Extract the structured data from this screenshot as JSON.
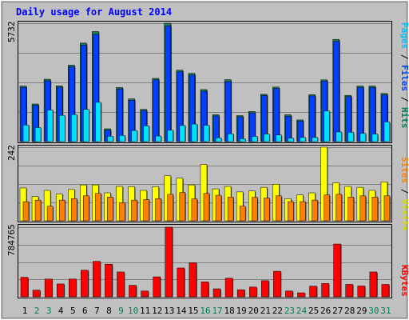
{
  "chart_data": [
    {
      "type": "bar",
      "title": "Daily usage for August 2014",
      "ymax_label": "5732",
      "ylim": [
        0,
        5732
      ],
      "legend": {
        "placement": "right",
        "parts": [
          "Pages",
          "Files",
          "Hits"
        ],
        "separator": " / "
      },
      "categories": [
        "1",
        "2",
        "3",
        "4",
        "5",
        "6",
        "7",
        "8",
        "9",
        "10",
        "11",
        "12",
        "13",
        "14",
        "15",
        "16",
        "17",
        "18",
        "19",
        "20",
        "21",
        "22",
        "23",
        "24",
        "25",
        "26",
        "27",
        "28",
        "29",
        "30",
        "31"
      ],
      "weekend_days": [
        "2",
        "3",
        "9",
        "10",
        "16",
        "17",
        "23",
        "24",
        "30",
        "31"
      ],
      "series": [
        {
          "name": "Hits",
          "color": "#1f7a4f",
          "values": [
            2690,
            1820,
            3020,
            2700,
            3700,
            4770,
            5330,
            620,
            2620,
            2070,
            1560,
            3060,
            5732,
            3460,
            3300,
            2520,
            1300,
            3000,
            1260,
            1460,
            2290,
            2640,
            1300,
            1050,
            2270,
            2990,
            4950,
            2240,
            2690,
            2690,
            2330
          ]
        },
        {
          "name": "Files",
          "color": "#0040ff",
          "values": [
            2620,
            1760,
            2940,
            2630,
            3620,
            4670,
            5190,
            560,
            2550,
            2000,
            1500,
            2990,
            5600,
            3380,
            3220,
            2440,
            1240,
            2900,
            1200,
            1390,
            2230,
            2570,
            1230,
            990,
            2210,
            2930,
            4850,
            2180,
            2620,
            2620,
            2260
          ]
        },
        {
          "name": "Pages",
          "color": "#00e0ff",
          "values": [
            800,
            680,
            1530,
            1270,
            1310,
            1560,
            1900,
            260,
            300,
            540,
            760,
            270,
            550,
            780,
            850,
            790,
            180,
            380,
            140,
            250,
            370,
            320,
            170,
            200,
            200,
            1480,
            470,
            450,
            400,
            370,
            950
          ]
        }
      ]
    },
    {
      "type": "bar",
      "ymax_label": "242",
      "ylim": [
        0,
        242
      ],
      "legend": {
        "placement": "right",
        "parts": [
          "Sites",
          "Visits"
        ],
        "separator": " / "
      },
      "series": [
        {
          "name": "Visits",
          "color": "#ffff00",
          "values": [
            108,
            80,
            100,
            88,
            103,
            118,
            118,
            92,
            113,
            112,
            100,
            112,
            148,
            140,
            118,
            185,
            105,
            113,
            95,
            98,
            110,
            120,
            73,
            85,
            92,
            242,
            125,
            113,
            110,
            100,
            128
          ]
        },
        {
          "name": "Sites",
          "color": "#ff8000",
          "values": [
            63,
            68,
            48,
            68,
            73,
            82,
            90,
            78,
            60,
            68,
            70,
            73,
            87,
            93,
            72,
            90,
            84,
            78,
            48,
            77,
            75,
            82,
            63,
            63,
            68,
            85,
            87,
            78,
            82,
            78,
            82
          ]
        }
      ]
    },
    {
      "type": "bar",
      "ymax_label": "784765",
      "ylim": [
        0,
        784765
      ],
      "legend": {
        "placement": "right",
        "parts": [
          "KBytes"
        ],
        "separator": ""
      },
      "series": [
        {
          "name": "KBytes",
          "color": "#ff0000",
          "values": [
            220000,
            75000,
            200000,
            145000,
            200000,
            300000,
            400000,
            368000,
            280000,
            130000,
            65000,
            225000,
            784765,
            325000,
            384000,
            168000,
            90000,
            210000,
            80000,
            110000,
            182000,
            288000,
            65000,
            45000,
            120000,
            150000,
            595000,
            140000,
            122000,
            280000,
            140000
          ]
        }
      ]
    }
  ],
  "colors": {
    "background": "#c0c0c0",
    "plot": "#c0c0c0",
    "grid": "#808080",
    "title": "#0000ff",
    "weekday_label": "#000000",
    "weekend_label": "#00805c",
    "pages_label": "#00c0ff",
    "files_label": "#0040ff",
    "hits_label": "#00805c",
    "sites_label": "#ff8000",
    "visits_label": "#d8d800",
    "kbytes_label": "#ff0000"
  }
}
